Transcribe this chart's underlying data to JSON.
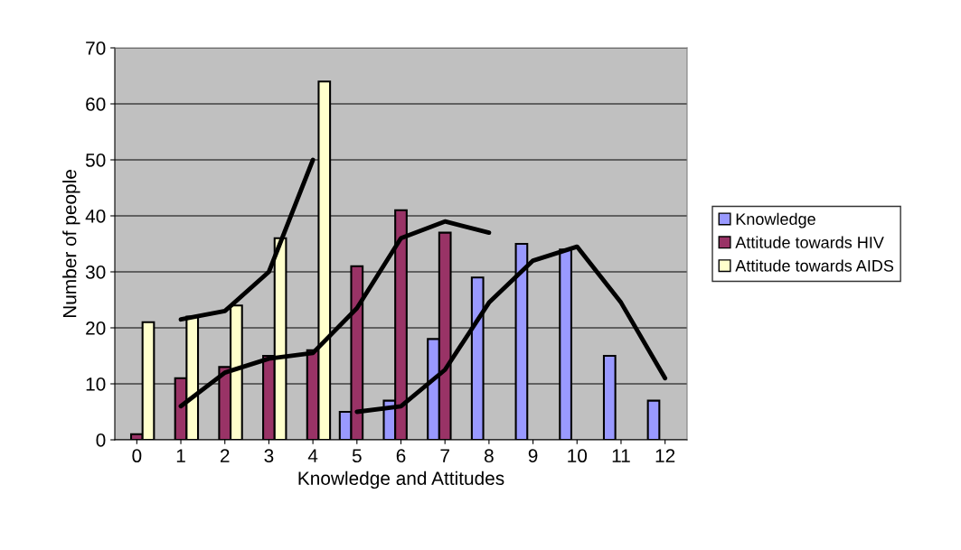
{
  "chart_data": {
    "type": "bar",
    "xlabel": "Knowledge and Attitudes",
    "ylabel": "Number of people",
    "categories": [
      "0",
      "1",
      "2",
      "3",
      "4",
      "5",
      "6",
      "7",
      "8",
      "9",
      "10",
      "11",
      "12"
    ],
    "series": [
      {
        "name": "Knowledge",
        "color": "#9999ff",
        "values": [
          null,
          null,
          null,
          null,
          null,
          5,
          7,
          18,
          29,
          35,
          34,
          15,
          7
        ]
      },
      {
        "name": "Attitude towards HIV",
        "color": "#993366",
        "values": [
          1,
          11,
          13,
          15,
          16,
          31,
          41,
          37,
          null,
          null,
          null,
          null,
          null
        ]
      },
      {
        "name": "Attitude towards AIDS",
        "color": "#ffffcc",
        "values": [
          21,
          22,
          24,
          36,
          64,
          null,
          null,
          null,
          null,
          null,
          null,
          null,
          null
        ]
      },
      {
        "type": "line",
        "color": "#000000",
        "values": [
          null,
          21.5,
          23,
          30,
          50,
          null,
          null,
          null,
          null,
          null,
          null,
          null,
          null
        ]
      },
      {
        "type": "line",
        "color": "#000000",
        "values": [
          null,
          6,
          12,
          14.5,
          15.5,
          23.5,
          36,
          39,
          37,
          null,
          null,
          null,
          null
        ]
      },
      {
        "type": "line",
        "color": "#000000",
        "values": [
          null,
          null,
          null,
          null,
          null,
          5,
          6,
          12.5,
          24.5,
          32,
          34.5,
          24.5,
          11
        ]
      }
    ],
    "ylim": [
      0,
      70
    ],
    "yticks": [
      0,
      10,
      20,
      30,
      40,
      50,
      60,
      70
    ],
    "grid": "y",
    "legend": "right",
    "marker": "none"
  }
}
